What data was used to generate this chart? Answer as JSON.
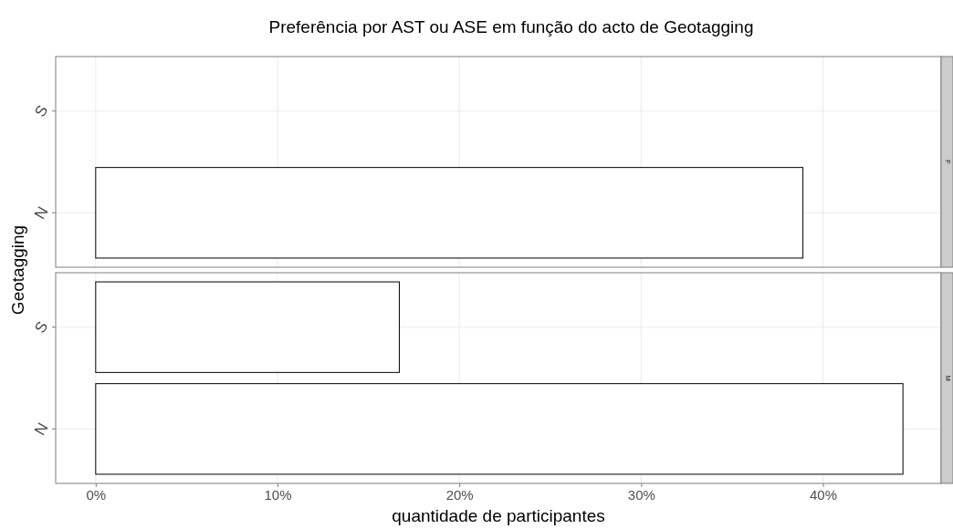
{
  "chart_data": [
    {
      "type": "bar",
      "orientation": "horizontal",
      "title": "Preferência por AST ou ASE em função do acto de Geotagging",
      "ylabel": "Geotagging",
      "annotations": [
        "F"
      ],
      "categories": [
        "S",
        "N"
      ],
      "values": [
        null,
        38.9
      ],
      "color": "#ffffff",
      "xlim": [
        -2.2,
        46.5
      ],
      "xticks": [
        {
          "value": 0,
          "label": null
        },
        {
          "value": 10,
          "label": null
        },
        {
          "value": 20,
          "label": null
        },
        {
          "value": 30,
          "label": null
        },
        {
          "value": 40,
          "label": null
        }
      ],
      "grid": true,
      "tick_labels": "y"
    },
    {
      "type": "bar",
      "orientation": "horizontal",
      "xlabel": "quantidade de participantes",
      "annotations": [
        "M"
      ],
      "categories": [
        "S",
        "N"
      ],
      "values": [
        16.7,
        44.4
      ],
      "color": "#ffffff",
      "xlim": [
        -2.2,
        46.5
      ],
      "xticks": [
        {
          "value": 0,
          "label": "0%"
        },
        {
          "value": 10,
          "label": "10%"
        },
        {
          "value": 20,
          "label": "20%"
        },
        {
          "value": 30,
          "label": "30%"
        },
        {
          "value": 40,
          "label": "40%"
        }
      ],
      "grid": true
    }
  ]
}
